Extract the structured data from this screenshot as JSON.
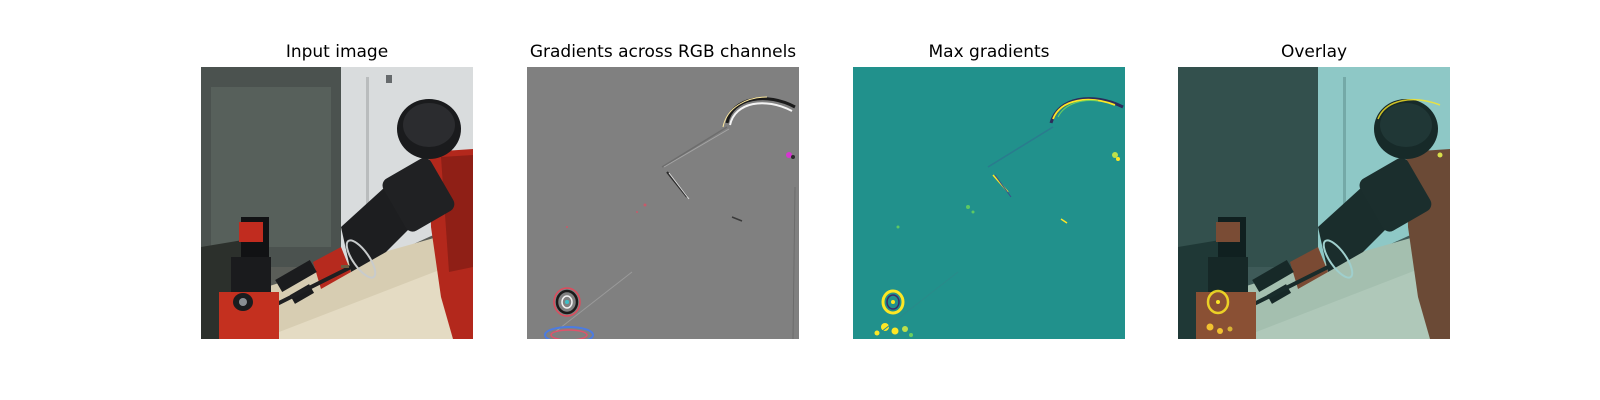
{
  "figure": {
    "panels": [
      {
        "title": "Input image"
      },
      {
        "title": "Gradients across RGB channels"
      },
      {
        "title": "Max gradients"
      },
      {
        "title": "Overlay"
      }
    ],
    "colors": {
      "gradient_background": "#808080",
      "max_gradient_background": "#21918c",
      "highlight_yellow": "#fde725",
      "overlay_tint": "#2a8a86"
    }
  }
}
